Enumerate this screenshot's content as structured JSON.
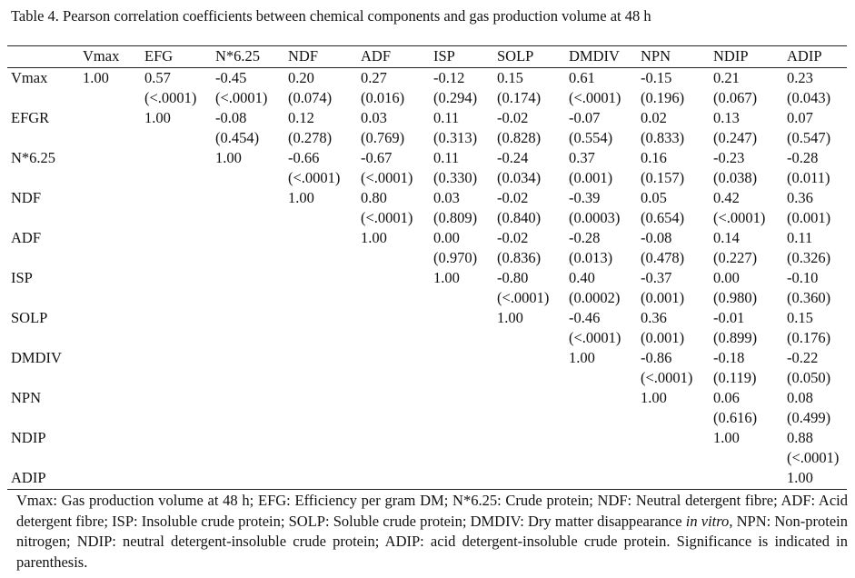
{
  "caption": "Table 4. Pearson correlation coefficients between chemical components and gas production volume at 48 h",
  "columns": [
    "Vmax",
    "EFG",
    "N*6.25",
    "NDF",
    "ADF",
    "ISP",
    "SOLP",
    "DMDIV",
    "NPN",
    "NDIP",
    "ADIP"
  ],
  "rows": [
    {
      "label": "Vmax",
      "r": [
        "1.00",
        "0.57",
        "-0.45",
        "0.20",
        "0.27",
        "-0.12",
        "0.15",
        "0.61",
        "-0.15",
        "0.21",
        "0.23"
      ],
      "p": [
        "",
        "(<.0001)",
        "(<.0001)",
        "(0.074)",
        "(0.016)",
        "(0.294)",
        "(0.174)",
        "(<.0001)",
        "(0.196)",
        "(0.067)",
        "(0.043)"
      ]
    },
    {
      "label": "EFGR",
      "r": [
        "",
        "1.00",
        "-0.08",
        "0.12",
        "0.03",
        "0.11",
        "-0.02",
        "-0.07",
        "0.02",
        "0.13",
        "0.07"
      ],
      "p": [
        "",
        "",
        "(0.454)",
        "(0.278)",
        "(0.769)",
        "(0.313)",
        "(0.828)",
        "(0.554)",
        "(0.833)",
        "(0.247)",
        "(0.547)"
      ]
    },
    {
      "label": "N*6.25",
      "r": [
        "",
        "",
        "1.00",
        "-0.66",
        "-0.67",
        "0.11",
        "-0.24",
        "0.37",
        "0.16",
        "-0.23",
        "-0.28"
      ],
      "p": [
        "",
        "",
        "",
        "(<.0001)",
        "(<.0001)",
        "(0.330)",
        "(0.034)",
        "(0.001)",
        "(0.157)",
        "(0.038)",
        "(0.011)"
      ]
    },
    {
      "label": "NDF",
      "r": [
        "",
        "",
        "",
        "1.00",
        "0.80",
        "0.03",
        "-0.02",
        "-0.39",
        "0.05",
        "0.42",
        "0.36"
      ],
      "p": [
        "",
        "",
        "",
        "",
        "(<.0001)",
        "(0.809)",
        "(0.840)",
        "(0.0003)",
        "(0.654)",
        "(<.0001)",
        "(0.001)"
      ]
    },
    {
      "label": "ADF",
      "r": [
        "",
        "",
        "",
        "",
        "1.00",
        "0.00",
        "-0.02",
        "-0.28",
        "-0.08",
        "0.14",
        "0.11"
      ],
      "p": [
        "",
        "",
        "",
        "",
        "",
        "(0.970)",
        "(0.836)",
        "(0.013)",
        "(0.478)",
        "(0.227)",
        "(0.326)"
      ]
    },
    {
      "label": "ISP",
      "r": [
        "",
        "",
        "",
        "",
        "",
        "1.00",
        "-0.80",
        "0.40",
        "-0.37",
        "0.00",
        "-0.10"
      ],
      "p": [
        "",
        "",
        "",
        "",
        "",
        "",
        "(<.0001)",
        "(0.0002)",
        "(0.001)",
        "(0.980)",
        "(0.360)"
      ]
    },
    {
      "label": "SOLP",
      "r": [
        "",
        "",
        "",
        "",
        "",
        "",
        "1.00",
        "-0.46",
        "0.36",
        "-0.01",
        "0.15"
      ],
      "p": [
        "",
        "",
        "",
        "",
        "",
        "",
        "",
        "(<.0001)",
        "(0.001)",
        "(0.899)",
        "(0.176)"
      ]
    },
    {
      "label": "DMDIV",
      "r": [
        "",
        "",
        "",
        "",
        "",
        "",
        "",
        "1.00",
        "-0.86",
        "-0.18",
        "-0.22"
      ],
      "p": [
        "",
        "",
        "",
        "",
        "",
        "",
        "",
        "",
        "(<.0001)",
        "(0.119)",
        "(0.050)"
      ]
    },
    {
      "label": "NPN",
      "r": [
        "",
        "",
        "",
        "",
        "",
        "",
        "",
        "",
        "1.00",
        "0.06",
        "0.08"
      ],
      "p": [
        "",
        "",
        "",
        "",
        "",
        "",
        "",
        "",
        "",
        "(0.616)",
        "(0.499)"
      ]
    },
    {
      "label": "NDIP",
      "r": [
        "",
        "",
        "",
        "",
        "",
        "",
        "",
        "",
        "",
        "1.00",
        "0.88"
      ],
      "p": [
        "",
        "",
        "",
        "",
        "",
        "",
        "",
        "",
        "",
        "",
        "(<.0001)"
      ]
    },
    {
      "label": "ADIP",
      "r": [
        "",
        "",
        "",
        "",
        "",
        "",
        "",
        "",
        "",
        "",
        "1.00"
      ],
      "p": [
        "",
        "",
        "",
        "",
        "",
        "",
        "",
        "",
        "",
        "",
        ""
      ]
    }
  ],
  "footnote": {
    "part1": "Vmax: Gas production volume at 48 h; EFG: Efficiency per gram DM; N*6.25: Crude protein; NDF: Neutral detergent fibre; ADF: Acid detergent fibre; ISP: Insoluble crude protein; SOLP: Soluble crude protein; DMDIV: Dry matter disappearance ",
    "italic": "in vitro",
    "part2": ", NPN: Non-protein nitrogen; NDIP: neutral detergent-insoluble crude protein; ADIP: acid detergent-insoluble crude protein. Significance is indicated in parenthesis."
  }
}
